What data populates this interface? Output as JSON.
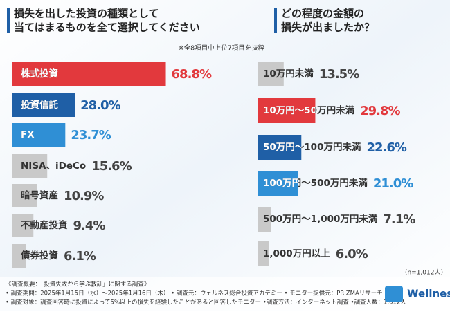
{
  "chart_data": [
    {
      "type": "hbar",
      "title": [
        "損失を出した投資の種類として",
        "当てはまるものを全て選択してください"
      ],
      "subtitle": "※全8項目中上位7項目を抜粋",
      "categories": [
        "株式投資",
        "投資信託",
        "FX",
        "NISA、iDeCo",
        "暗号資産",
        "不動産投資",
        "債券投資"
      ],
      "values": [
        68.8,
        28.0,
        23.7,
        15.6,
        10.9,
        9.4,
        6.1
      ],
      "value_labels": [
        "68.8%",
        "28.0%",
        "23.7%",
        "15.6%",
        "10.9%",
        "9.4%",
        "6.1%"
      ],
      "colors": [
        "#e2393d",
        "#1f5fa6",
        "#2f8fd5",
        "#c9c9c9",
        "#c9c9c9",
        "#c9c9c9",
        "#c9c9c9"
      ],
      "value_colors": [
        "#e2393d",
        "#1f5fa6",
        "#2f8fd5",
        "#444444",
        "#444444",
        "#444444",
        "#444444"
      ]
    },
    {
      "type": "hbar",
      "title": [
        "どの程度の金額の",
        "損失が出ましたか？"
      ],
      "note": "(n=1,012人)",
      "categories": [
        "10万円未満",
        "10万円～50万円未満",
        "50万円～100万円未満",
        "100万円～500万円未満",
        "500万円～1,000万円未満",
        "1,000万円以上"
      ],
      "values": [
        13.5,
        29.8,
        22.6,
        21.0,
        7.1,
        6.0
      ],
      "value_labels": [
        "13.5%",
        "29.8%",
        "22.6%",
        "21.0%",
        "7.1%",
        "6.0%"
      ],
      "colors": [
        "#c9c9c9",
        "#e2393d",
        "#1f5fa6",
        "#2f8fd5",
        "#c9c9c9",
        "#c9c9c9"
      ],
      "value_colors": [
        "#444444",
        "#e2393d",
        "#1f5fa6",
        "#2f8fd5",
        "#444444",
        "#444444"
      ]
    }
  ],
  "footer": [
    "《調査概要：「投資失敗から学ぶ教訓」に関する調査》",
    "• 調査期間：2025年1月15日（水）～2025年1月16日（木） • 調査元：ウェルネス総合投資アカデミー • モニター提供元：PRIZMAリサーチ",
    "• 調査対象：調査回答時に投資によって5%以上の損失を経験したことがあると回答したモニター •調査方法：インターネット調査 •調査人数：1,012人"
  ],
  "logo": "Wellness"
}
